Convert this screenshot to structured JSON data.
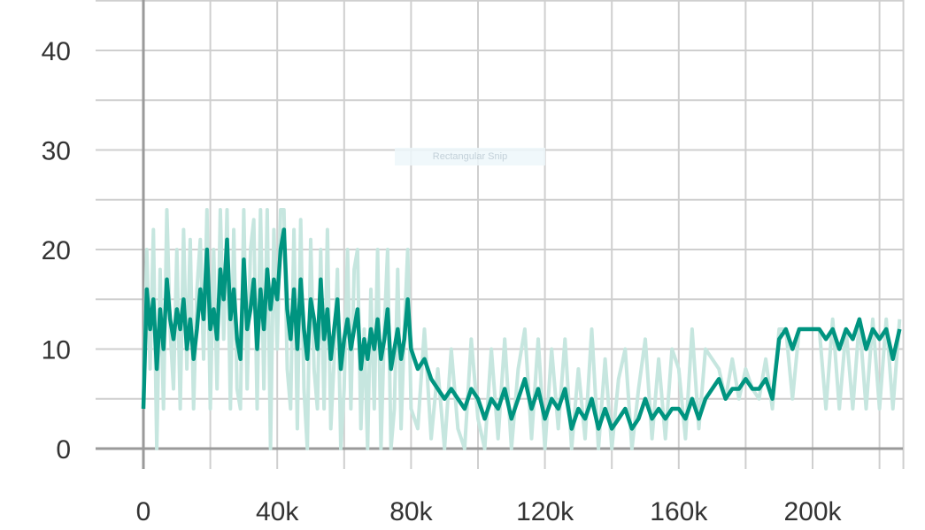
{
  "overlay_label": "Rectangular Snip",
  "colors": {
    "series": "#009480",
    "raw": "#c6e6df",
    "grid": "#cfcfcf",
    "axis": "#9a9a9a"
  },
  "chart_data": {
    "type": "line",
    "title": "",
    "xlabel": "",
    "ylabel": "",
    "xlim": [
      0,
      227000
    ],
    "ylim": [
      0,
      45
    ],
    "grid": true,
    "x_ticks": [
      0,
      40000,
      80000,
      120000,
      160000,
      200000
    ],
    "x_tick_labels": [
      "0",
      "40k",
      "80k",
      "120k",
      "160k",
      "200k"
    ],
    "y_ticks": [
      0,
      10,
      20,
      30,
      40
    ],
    "y_tick_labels": [
      "0",
      "10",
      "20",
      "30",
      "40"
    ],
    "series": [
      {
        "role": "smoothed",
        "x": [
          0,
          1000,
          2000,
          3000,
          4000,
          5000,
          6000,
          7000,
          8000,
          9000,
          10000,
          11000,
          12000,
          13000,
          14000,
          15000,
          16000,
          17000,
          18000,
          19000,
          20000,
          21000,
          22000,
          23000,
          24000,
          25000,
          26000,
          27000,
          28000,
          29000,
          30000,
          31000,
          32000,
          33000,
          34000,
          35000,
          36000,
          37000,
          38000,
          39000,
          40000,
          41000,
          42000,
          43000,
          44000,
          45000,
          46000,
          47000,
          48000,
          49000,
          50000,
          51000,
          52000,
          53000,
          54000,
          55000,
          56000,
          57000,
          58000,
          59000,
          60000,
          61000,
          62000,
          63000,
          64000,
          65000,
          66000,
          67000,
          68000,
          69000,
          70000,
          71000,
          72000,
          73000,
          74000,
          75000,
          76000,
          77000,
          78000,
          79000,
          80000,
          82000,
          84000,
          86000,
          88000,
          90000,
          92000,
          94000,
          96000,
          98000,
          100000,
          102000,
          104000,
          106000,
          108000,
          110000,
          112000,
          114000,
          116000,
          118000,
          120000,
          122000,
          124000,
          126000,
          128000,
          130000,
          132000,
          134000,
          136000,
          138000,
          140000,
          142000,
          144000,
          146000,
          148000,
          150000,
          152000,
          154000,
          156000,
          158000,
          160000,
          162000,
          164000,
          166000,
          168000,
          170000,
          172000,
          174000,
          176000,
          178000,
          180000,
          182000,
          184000,
          186000,
          188000,
          190000,
          192000,
          194000,
          196000,
          198000,
          200000,
          202000,
          204000,
          206000,
          208000,
          210000,
          212000,
          214000,
          216000,
          218000,
          220000,
          222000,
          224000,
          226000
        ],
        "y": [
          4,
          16,
          12,
          15,
          8,
          14,
          10,
          17,
          13,
          11,
          14,
          12,
          15,
          10,
          13,
          9,
          12,
          16,
          13,
          20,
          12,
          14,
          11,
          18,
          15,
          21,
          13,
          16,
          11,
          9,
          19,
          12,
          14,
          17,
          10,
          16,
          12,
          18,
          14,
          17,
          15,
          20,
          22,
          14,
          11,
          16,
          10,
          17,
          12,
          9,
          15,
          13,
          10,
          17,
          11,
          14,
          9,
          12,
          15,
          8,
          11,
          13,
          10,
          12,
          14,
          8,
          11,
          9,
          12,
          10,
          13,
          9,
          11,
          14,
          8,
          10,
          12,
          9,
          11,
          15,
          10,
          8,
          9,
          7,
          6,
          5,
          6,
          5,
          4,
          6,
          5,
          3,
          5,
          4,
          6,
          3,
          5,
          7,
          4,
          6,
          3,
          5,
          4,
          6,
          2,
          4,
          3,
          5,
          2,
          4,
          2,
          3,
          4,
          2,
          3,
          5,
          3,
          4,
          3,
          4,
          4,
          3,
          5,
          3,
          5,
          6,
          7,
          5,
          6,
          6,
          7,
          6,
          6,
          7,
          5,
          11,
          12,
          10,
          12,
          12,
          12,
          12,
          11,
          12,
          10,
          12,
          11,
          13,
          10,
          12,
          11,
          12,
          9,
          12
        ]
      },
      {
        "role": "raw",
        "x": [
          0,
          1000,
          2000,
          3000,
          4000,
          5000,
          6000,
          7000,
          8000,
          9000,
          10000,
          11000,
          12000,
          13000,
          14000,
          15000,
          16000,
          17000,
          18000,
          19000,
          20000,
          21000,
          22000,
          23000,
          24000,
          25000,
          26000,
          27000,
          28000,
          29000,
          30000,
          31000,
          32000,
          33000,
          34000,
          35000,
          36000,
          37000,
          38000,
          39000,
          40000,
          41000,
          42000,
          43000,
          44000,
          45000,
          46000,
          47000,
          48000,
          49000,
          50000,
          51000,
          52000,
          53000,
          54000,
          55000,
          56000,
          57000,
          58000,
          59000,
          60000,
          61000,
          62000,
          63000,
          64000,
          65000,
          66000,
          67000,
          68000,
          69000,
          70000,
          71000,
          72000,
          73000,
          74000,
          75000,
          76000,
          77000,
          78000,
          79000,
          80000,
          82000,
          84000,
          86000,
          88000,
          90000,
          92000,
          94000,
          96000,
          98000,
          100000,
          102000,
          104000,
          106000,
          108000,
          110000,
          112000,
          114000,
          116000,
          118000,
          120000,
          122000,
          124000,
          126000,
          128000,
          130000,
          132000,
          134000,
          136000,
          138000,
          140000,
          142000,
          144000,
          146000,
          148000,
          150000,
          152000,
          154000,
          156000,
          158000,
          160000,
          162000,
          164000,
          166000,
          168000,
          170000,
          172000,
          174000,
          176000,
          178000,
          180000,
          182000,
          184000,
          186000,
          188000,
          190000,
          192000,
          194000,
          196000,
          198000,
          200000,
          202000,
          204000,
          206000,
          208000,
          210000,
          212000,
          214000,
          216000,
          218000,
          220000,
          222000,
          224000,
          226000
        ],
        "y": [
          4,
          20,
          8,
          22,
          0,
          18,
          4,
          24,
          12,
          6,
          20,
          4,
          22,
          8,
          21,
          4,
          16,
          21,
          9,
          24,
          4,
          20,
          6,
          24,
          11,
          24,
          4,
          22,
          6,
          4,
          24,
          6,
          20,
          23,
          4,
          24,
          6,
          24,
          0,
          22,
          10,
          24,
          24,
          8,
          4,
          22,
          2,
          23,
          6,
          0,
          21,
          8,
          4,
          20,
          4,
          22,
          2,
          9,
          18,
          0,
          6,
          20,
          4,
          18,
          20,
          2,
          12,
          0,
          16,
          4,
          20,
          0,
          12,
          20,
          0,
          4,
          18,
          2,
          12,
          20,
          4,
          2,
          12,
          1,
          8,
          0,
          10,
          2,
          0,
          11,
          3,
          0,
          10,
          1,
          11,
          0,
          8,
          12,
          1,
          11,
          0,
          10,
          2,
          11,
          0,
          8,
          1,
          12,
          0,
          9,
          0,
          7,
          10,
          0,
          6,
          11,
          1,
          9,
          1,
          10,
          8,
          1,
          12,
          2,
          10,
          9,
          8,
          5,
          9,
          5,
          8,
          6,
          5,
          9,
          4,
          12,
          12,
          5,
          12,
          12,
          12,
          12,
          4,
          13,
          4,
          12,
          4,
          13,
          4,
          13,
          4,
          13,
          4,
          13
        ]
      }
    ]
  }
}
